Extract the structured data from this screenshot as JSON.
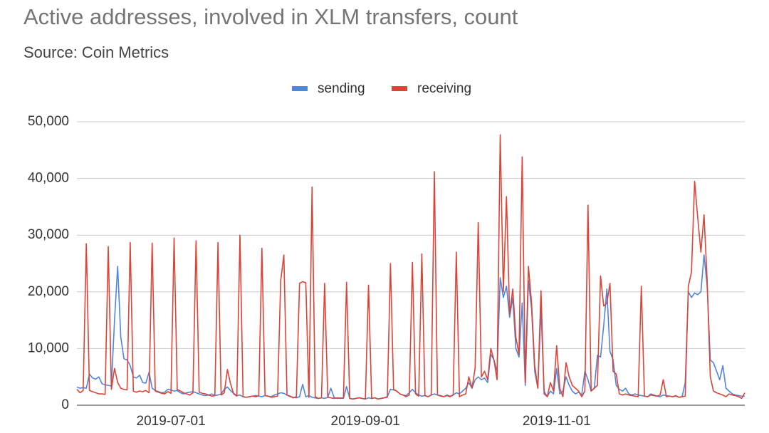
{
  "chart_data": {
    "type": "line",
    "title": "Active addresses, involved in XLM transfers, count",
    "subtitle": "Source: Coin Metrics",
    "x": [
      "2019-06-01",
      "2019-06-02",
      "2019-06-03",
      "2019-06-04",
      "2019-06-05",
      "2019-06-06",
      "2019-06-07",
      "2019-06-08",
      "2019-06-09",
      "2019-06-10",
      "2019-06-11",
      "2019-06-12",
      "2019-06-13",
      "2019-06-14",
      "2019-06-15",
      "2019-06-16",
      "2019-06-17",
      "2019-06-18",
      "2019-06-19",
      "2019-06-20",
      "2019-06-21",
      "2019-06-22",
      "2019-06-23",
      "2019-06-24",
      "2019-06-25",
      "2019-06-26",
      "2019-06-27",
      "2019-06-28",
      "2019-06-29",
      "2019-06-30",
      "2019-07-01",
      "2019-07-02",
      "2019-07-03",
      "2019-07-04",
      "2019-07-05",
      "2019-07-06",
      "2019-07-07",
      "2019-07-08",
      "2019-07-09",
      "2019-07-10",
      "2019-07-11",
      "2019-07-12",
      "2019-07-13",
      "2019-07-14",
      "2019-07-15",
      "2019-07-16",
      "2019-07-17",
      "2019-07-18",
      "2019-07-19",
      "2019-07-20",
      "2019-07-21",
      "2019-07-22",
      "2019-07-23",
      "2019-07-24",
      "2019-07-25",
      "2019-07-26",
      "2019-07-27",
      "2019-07-28",
      "2019-07-29",
      "2019-07-30",
      "2019-07-31",
      "2019-08-01",
      "2019-08-02",
      "2019-08-03",
      "2019-08-04",
      "2019-08-05",
      "2019-08-06",
      "2019-08-07",
      "2019-08-08",
      "2019-08-09",
      "2019-08-10",
      "2019-08-11",
      "2019-08-12",
      "2019-08-13",
      "2019-08-14",
      "2019-08-15",
      "2019-08-16",
      "2019-08-17",
      "2019-08-18",
      "2019-08-19",
      "2019-08-20",
      "2019-08-21",
      "2019-08-22",
      "2019-08-23",
      "2019-08-24",
      "2019-08-25",
      "2019-08-26",
      "2019-08-27",
      "2019-08-28",
      "2019-08-29",
      "2019-08-30",
      "2019-08-31",
      "2019-09-01",
      "2019-09-02",
      "2019-09-03",
      "2019-09-04",
      "2019-09-05",
      "2019-09-06",
      "2019-09-07",
      "2019-09-08",
      "2019-09-09",
      "2019-09-10",
      "2019-09-11",
      "2019-09-12",
      "2019-09-13",
      "2019-09-14",
      "2019-09-15",
      "2019-09-16",
      "2019-09-17",
      "2019-09-18",
      "2019-09-19",
      "2019-09-20",
      "2019-09-21",
      "2019-09-22",
      "2019-09-23",
      "2019-09-24",
      "2019-09-25",
      "2019-09-26",
      "2019-09-27",
      "2019-09-28",
      "2019-09-29",
      "2019-09-30",
      "2019-10-01",
      "2019-10-02",
      "2019-10-03",
      "2019-10-04",
      "2019-10-05",
      "2019-10-06",
      "2019-10-07",
      "2019-10-08",
      "2019-10-09",
      "2019-10-10",
      "2019-10-11",
      "2019-10-12",
      "2019-10-13",
      "2019-10-14",
      "2019-10-15",
      "2019-10-16",
      "2019-10-17",
      "2019-10-18",
      "2019-10-19",
      "2019-10-20",
      "2019-10-21",
      "2019-10-22",
      "2019-10-23",
      "2019-10-24",
      "2019-10-25",
      "2019-10-26",
      "2019-10-27",
      "2019-10-28",
      "2019-10-29",
      "2019-10-30",
      "2019-10-31",
      "2019-11-01",
      "2019-11-02",
      "2019-11-03",
      "2019-11-04",
      "2019-11-05",
      "2019-11-06",
      "2019-11-07",
      "2019-11-08",
      "2019-11-09",
      "2019-11-10",
      "2019-11-11",
      "2019-11-12",
      "2019-11-13",
      "2019-11-14",
      "2019-11-15",
      "2019-11-16",
      "2019-11-17",
      "2019-11-18",
      "2019-11-19",
      "2019-11-20",
      "2019-11-21",
      "2019-11-22",
      "2019-11-23",
      "2019-11-24",
      "2019-11-25",
      "2019-11-26",
      "2019-11-27",
      "2019-11-28",
      "2019-11-29",
      "2019-11-30",
      "2019-12-01",
      "2019-12-02",
      "2019-12-03",
      "2019-12-04",
      "2019-12-05",
      "2019-12-06",
      "2019-12-07",
      "2019-12-08",
      "2019-12-09",
      "2019-12-10",
      "2019-12-11",
      "2019-12-12",
      "2019-12-13",
      "2019-12-14",
      "2019-12-15",
      "2019-12-16",
      "2019-12-17",
      "2019-12-18",
      "2019-12-19",
      "2019-12-20",
      "2019-12-21",
      "2019-12-22",
      "2019-12-23",
      "2019-12-24",
      "2019-12-25",
      "2019-12-26",
      "2019-12-27",
      "2019-12-28",
      "2019-12-29",
      "2019-12-30",
      "2019-12-31"
    ],
    "series": [
      {
        "name": "sending",
        "color": "#4f86dc",
        "values": [
          3200,
          3000,
          3100,
          3000,
          5500,
          4800,
          4600,
          5000,
          3800,
          3600,
          3500,
          3400,
          15000,
          24500,
          12000,
          8200,
          8000,
          7000,
          5000,
          4800,
          5300,
          4000,
          3900,
          5800,
          3000,
          2600,
          2400,
          2200,
          2300,
          2800,
          2700,
          2500,
          2600,
          2200,
          2000,
          2200,
          2300,
          2400,
          2200,
          2000,
          1800,
          1700,
          1800,
          2000,
          1700,
          1800,
          2000,
          2800,
          3200,
          2600,
          2100,
          1700,
          1800,
          1500,
          1400,
          1500,
          1600,
          1700,
          1600,
          1500,
          1700,
          1600,
          1500,
          1800,
          2000,
          2200,
          2100,
          1800,
          1500,
          1400,
          1300,
          1500,
          3700,
          1500,
          1700,
          1400,
          1300,
          1200,
          1300,
          1200,
          1400,
          3000,
          1400,
          1200,
          1300,
          1200,
          3300,
          1200,
          1100,
          1200,
          1300,
          1200,
          1100,
          1300,
          1200,
          1300,
          1100,
          1200,
          1300,
          1500,
          2800,
          2700,
          2500,
          2000,
          1800,
          1700,
          2200,
          2800,
          2200,
          1800,
          1600,
          1700,
          1500,
          1800,
          2000,
          1800,
          1700,
          1500,
          1800,
          1600,
          1800,
          2200,
          2000,
          2500,
          3000,
          4000,
          3000,
          4500,
          5000,
          4500,
          4800,
          4000,
          9000,
          8000,
          6000,
          22500,
          19000,
          21000,
          15500,
          19000,
          10000,
          8500,
          18000,
          3500,
          22000,
          17000,
          6000,
          3000,
          17000,
          2500,
          1500,
          2500,
          2000,
          6500,
          2000,
          2500,
          5000,
          3500,
          2500,
          2000,
          2300,
          1800,
          6000,
          4500,
          2500,
          3000,
          8800,
          8500,
          14000,
          20500,
          9500,
          8000,
          3500,
          2800,
          2500,
          3000,
          2000,
          1800,
          2000,
          1800,
          1700,
          1600,
          1500,
          2000,
          1800,
          1600,
          1500,
          1800,
          1700,
          1600,
          1500,
          1600,
          1400,
          1500,
          4000,
          20000,
          19000,
          19800,
          19500,
          20000,
          26500,
          21000,
          8000,
          7500,
          6000,
          4500,
          7000,
          3000,
          2500,
          2000,
          1800,
          1700,
          1600,
          1600
        ]
      },
      {
        "name": "receiving",
        "color": "#db4437",
        "values": [
          2800,
          2200,
          2600,
          28500,
          2600,
          2400,
          2200,
          2000,
          2000,
          1900,
          28000,
          2800,
          6500,
          4000,
          3000,
          2800,
          2700,
          28700,
          2500,
          2300,
          2500,
          2400,
          2600,
          2200,
          28600,
          2500,
          2300,
          2100,
          2000,
          2400,
          2100,
          29500,
          2800,
          2500,
          2200,
          2000,
          1800,
          2200,
          29000,
          2300,
          2100,
          2000,
          1800,
          1600,
          1700,
          28700,
          1800,
          2200,
          6300,
          3800,
          2000,
          1600,
          30000,
          1500,
          1400,
          1500,
          1600,
          1500,
          1700,
          27700,
          1700,
          1600,
          1400,
          1500,
          1600,
          22000,
          26500,
          1800,
          1600,
          1300,
          1500,
          21500,
          21800,
          21600,
          1400,
          38500,
          1500,
          1200,
          1300,
          21500,
          1400,
          1300,
          1200,
          1300,
          1200,
          1300,
          21700,
          1200,
          1100,
          1200,
          1300,
          1200,
          1100,
          21200,
          1200,
          1300,
          1100,
          1200,
          1300,
          1400,
          25000,
          2800,
          2500,
          2000,
          1800,
          1500,
          1800,
          25200,
          2000,
          1600,
          26700,
          1700,
          1500,
          1800,
          41200,
          1800,
          1600,
          1500,
          1700,
          1500,
          1800,
          27000,
          1500,
          1800,
          2000,
          5000,
          3000,
          6500,
          32200,
          5000,
          6000,
          4500,
          10000,
          8000,
          4500,
          47700,
          20000,
          36800,
          16000,
          20500,
          12000,
          9000,
          43800,
          4000,
          24500,
          18000,
          7000,
          3000,
          20200,
          2000,
          1500,
          4000,
          2500,
          10500,
          3000,
          1500,
          7500,
          5000,
          3500,
          3000,
          2500,
          1500,
          2500,
          35300,
          2500,
          3000,
          3500,
          22800,
          17500,
          18000,
          21500,
          6000,
          5500,
          2000,
          1800,
          2000,
          1800,
          1700,
          1600,
          1500,
          21000,
          1600,
          1500,
          1800,
          1700,
          1600,
          1800,
          4500,
          1500,
          1600,
          1500,
          1700,
          1400,
          1500,
          1600,
          21000,
          23500,
          39500,
          33000,
          27000,
          33600,
          22000,
          5000,
          2500,
          2200,
          2000,
          1800,
          1500,
          2000,
          1800,
          1700,
          1500,
          1200,
          2200
        ]
      }
    ],
    "xlim": [
      "2019-06-01",
      "2019-12-31"
    ],
    "xticks": [
      "2019-07-01",
      "2019-09-01",
      "2019-11-01"
    ],
    "ylim": [
      0,
      50000
    ],
    "yticks": [
      0,
      {
        "value": 10000,
        "label": "10,000"
      },
      {
        "value": 20000,
        "label": "20,000"
      },
      {
        "value": 30000,
        "label": "30,000"
      },
      {
        "value": 40000,
        "label": "40,000"
      },
      {
        "value": 50000,
        "label": "50,000"
      }
    ],
    "grid": true,
    "legend": "top"
  }
}
